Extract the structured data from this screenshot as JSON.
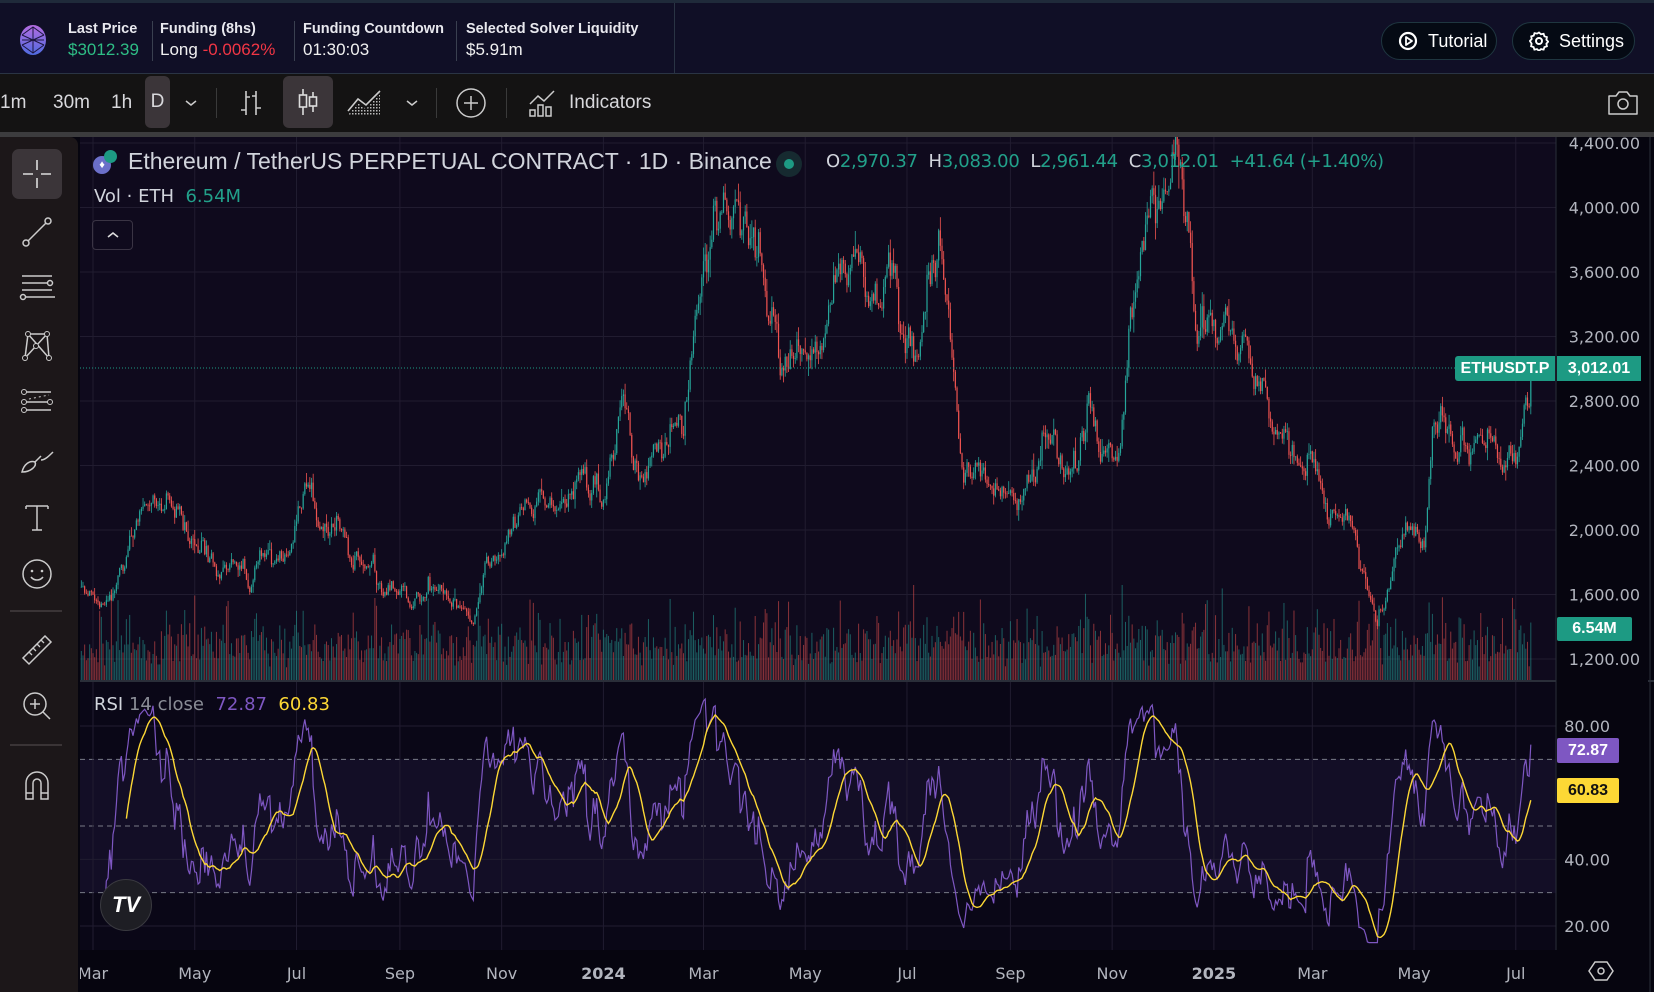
{
  "header": {
    "last_price_label": "Last Price",
    "last_price": "$3012.39",
    "funding_label": "Funding (8hs)",
    "funding_side": "Long",
    "funding_rate": "-0.0062%",
    "countdown_label": "Funding Countdown",
    "countdown": "01:30:03",
    "liquidity_label": "Selected Solver Liquidity",
    "liquidity": "$5.91m",
    "tutorial": "Tutorial",
    "settings": "Settings"
  },
  "toolbar": {
    "intervals": [
      "1m",
      "30m",
      "1h",
      "D"
    ],
    "indicators": "Indicators"
  },
  "legend": {
    "title": "Ethereum / TetherUS PERPETUAL CONTRACT · 1D · Binance",
    "o_label": "O",
    "o": "2,970.37",
    "h_label": "H",
    "h": "3,083.00",
    "l_label": "L",
    "l": "2,961.44",
    "c_label": "C",
    "c": "3,012.01",
    "change": "+41.64 (+1.40%)",
    "vol_label": "Vol · ETH",
    "vol": "6.54M",
    "rsi_label": "RSI",
    "rsi_params": "14 close",
    "rsi": "72.87",
    "rsi_ma": "60.83"
  },
  "badges": {
    "symbol": "ETHUSDT.P",
    "price": "3,012.01",
    "vol": "6.54M",
    "rsi": "72.87",
    "rsi_ma": "60.83"
  },
  "colors": {
    "up": "#26a69a",
    "down": "#ef5350",
    "rsi": "#7e57c2",
    "rsi_ma": "#fdd835",
    "accent": "#1d9a83"
  },
  "chart_data": {
    "type": "candlestick",
    "title": "Ethereum / TetherUS PERPETUAL CONTRACT · 1D · Binance",
    "price_ticks": [
      "4,400.00",
      "4,000.00",
      "3,600.00",
      "3,200.00",
      "2,800.00",
      "2,400.00",
      "2,000.00",
      "1,600.00",
      "1,200.00"
    ],
    "price_tick_values": [
      4400,
      4000,
      3600,
      3200,
      2800,
      2400,
      2000,
      1600,
      1200
    ],
    "ylim": [
      1200,
      4400
    ],
    "rsi_ticks": [
      "80.00",
      "40.00",
      "20.00"
    ],
    "rsi_tick_values": [
      80,
      40,
      20
    ],
    "rsi_bands": [
      70,
      50,
      30
    ],
    "time_ticks": [
      {
        "label": "Mar",
        "date": "2023-03-01"
      },
      {
        "label": "May",
        "date": "2023-05-01"
      },
      {
        "label": "Jul",
        "date": "2023-07-01"
      },
      {
        "label": "Sep",
        "date": "2023-09-01"
      },
      {
        "label": "Nov",
        "date": "2023-11-01"
      },
      {
        "label": "2024",
        "date": "2024-01-01",
        "bold": true
      },
      {
        "label": "Mar",
        "date": "2024-03-01"
      },
      {
        "label": "May",
        "date": "2024-05-01"
      },
      {
        "label": "Jul",
        "date": "2024-07-01"
      },
      {
        "label": "Sep",
        "date": "2024-09-01"
      },
      {
        "label": "Nov",
        "date": "2024-11-01"
      },
      {
        "label": "2025",
        "date": "2025-01-01",
        "bold": true
      },
      {
        "label": "Mar",
        "date": "2025-03-01"
      },
      {
        "label": "May",
        "date": "2025-05-01"
      },
      {
        "label": "Jul",
        "date": "2025-07-01"
      }
    ],
    "last_close": 3012.01,
    "price_anchors": [
      [
        "2023-02-22",
        1650
      ],
      [
        "2023-03-10",
        1430
      ],
      [
        "2023-03-20",
        1750
      ],
      [
        "2023-04-15",
        2100
      ],
      [
        "2023-05-10",
        1800
      ],
      [
        "2023-06-15",
        1650
      ],
      [
        "2023-07-05",
        1950
      ],
      [
        "2023-07-25",
        1870
      ],
      [
        "2023-08-16",
        1800
      ],
      [
        "2023-08-18",
        1620
      ],
      [
        "2023-09-15",
        1620
      ],
      [
        "2023-10-12",
        1550
      ],
      [
        "2023-10-25",
        1800
      ],
      [
        "2023-11-10",
        2050
      ],
      [
        "2023-12-08",
        2350
      ],
      [
        "2024-01-03",
        2200
      ],
      [
        "2024-01-12",
        2600
      ],
      [
        "2024-01-23",
        2200
      ],
      [
        "2024-02-20",
        2950
      ],
      [
        "2024-03-12",
        4050
      ],
      [
        "2024-04-01",
        3500
      ],
      [
        "2024-04-17",
        3000
      ],
      [
        "2024-05-01",
        2950
      ],
      [
        "2024-05-23",
        3800
      ],
      [
        "2024-06-20",
        3500
      ],
      [
        "2024-07-05",
        2950
      ],
      [
        "2024-07-20",
        3500
      ],
      [
        "2024-08-05",
        2400
      ],
      [
        "2024-09-06",
        2250
      ],
      [
        "2024-09-27",
        2650
      ],
      [
        "2024-10-10",
        2400
      ],
      [
        "2024-10-29",
        2650
      ],
      [
        "2024-11-04",
        2400
      ],
      [
        "2024-11-12",
        3300
      ],
      [
        "2024-12-06",
        3900
      ],
      [
        "2024-12-16",
        4000
      ],
      [
        "2024-12-20",
        3300
      ],
      [
        "2025-01-06",
        3650
      ],
      [
        "2025-01-13",
        3100
      ],
      [
        "2025-01-30",
        3250
      ],
      [
        "2025-02-03",
        2700
      ],
      [
        "2025-02-20",
        2750
      ],
      [
        "2025-03-10",
        2000
      ],
      [
        "2025-03-25",
        2050
      ],
      [
        "2025-04-08",
        1500
      ],
      [
        "2025-04-22",
        1800
      ],
      [
        "2025-05-07",
        1850
      ],
      [
        "2025-05-12",
        2550
      ],
      [
        "2025-05-30",
        2600
      ],
      [
        "2025-06-22",
        2250
      ],
      [
        "2025-07-01",
        2450
      ],
      [
        "2025-07-10",
        3012
      ]
    ]
  }
}
